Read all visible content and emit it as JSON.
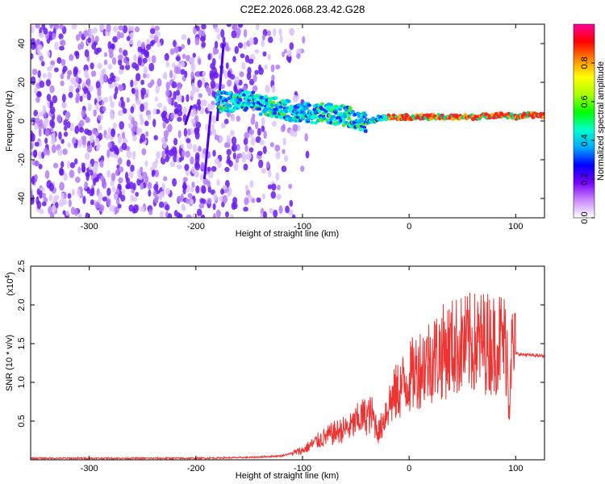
{
  "title": "C2E2.2026.068.23.42.G28",
  "chart_data": [
    {
      "type": "heatmap",
      "xlabel": "Height of straight line (km)",
      "ylabel": "Frequency (Hz)",
      "xlim": [
        -355,
        127
      ],
      "ylim": [
        -50,
        50
      ],
      "xticks": [
        -300,
        -200,
        -100,
        0,
        100
      ],
      "yticks": [
        -40,
        -20,
        0,
        20,
        40
      ],
      "grid": false,
      "colorbar": {
        "label": "Normalized spectral amplitude",
        "range": [
          0,
          1
        ],
        "ticks": [
          0.0,
          0.2,
          0.4,
          0.6,
          0.8
        ],
        "colors": [
          "#ffffff",
          "#cc88ff",
          "#7700ff",
          "#0000ff",
          "#00aaff",
          "#00ffcc",
          "#00ff00",
          "#aaff00",
          "#ffff00",
          "#ff8800",
          "#ff0000",
          "#ff0099"
        ]
      },
      "ridge": {
        "x": [
          -180,
          -160,
          -150,
          -140,
          -125,
          -110,
          -95,
          -80,
          -65,
          -55,
          -45,
          -35,
          -25,
          -15,
          0,
          20,
          40,
          60,
          80,
          90,
          100,
          110,
          127
        ],
        "y": [
          10,
          10,
          11,
          8,
          7,
          5,
          4,
          4,
          3,
          2,
          -1,
          0,
          2,
          2,
          2,
          2,
          2,
          2,
          3,
          3,
          2,
          3,
          3
        ]
      },
      "noise_region": {
        "x_end": -130
      }
    },
    {
      "type": "line",
      "xlabel": "Height of straight line (km)",
      "ylabel": "SNR (10 * v/v)",
      "scale_label": "(x10",
      "scale_exp": "4",
      "scale_close": ")",
      "xlim": [
        -355,
        127
      ],
      "ylim": [
        0,
        2.5
      ],
      "xticks": [
        -300,
        -200,
        -100,
        0,
        100
      ],
      "yticks": [
        0.5,
        1.0,
        1.5,
        2.0,
        2.5
      ],
      "ytick_labels": [
        "0.5",
        "1.0",
        "1.5",
        "2.0",
        "2.5"
      ],
      "grid": false,
      "color": "#ee3333",
      "series": [
        {
          "x": [
            -355,
            -300,
            -250,
            -200,
            -150,
            -120,
            -100,
            -85,
            -70,
            -55,
            -45,
            -35,
            -28,
            -20,
            -10,
            0,
            10,
            20,
            30,
            40,
            50,
            60,
            70,
            80,
            88,
            92,
            94,
            95,
            98,
            105,
            115,
            127
          ],
          "y": [
            0.02,
            0.02,
            0.02,
            0.02,
            0.03,
            0.05,
            0.12,
            0.25,
            0.35,
            0.42,
            0.55,
            0.58,
            0.35,
            0.7,
            0.9,
            1.05,
            1.2,
            1.3,
            1.38,
            1.45,
            1.48,
            1.5,
            1.52,
            1.5,
            1.55,
            1.4,
            0.6,
            1.42,
            1.38,
            1.36,
            1.35,
            1.34
          ]
        }
      ]
    }
  ]
}
